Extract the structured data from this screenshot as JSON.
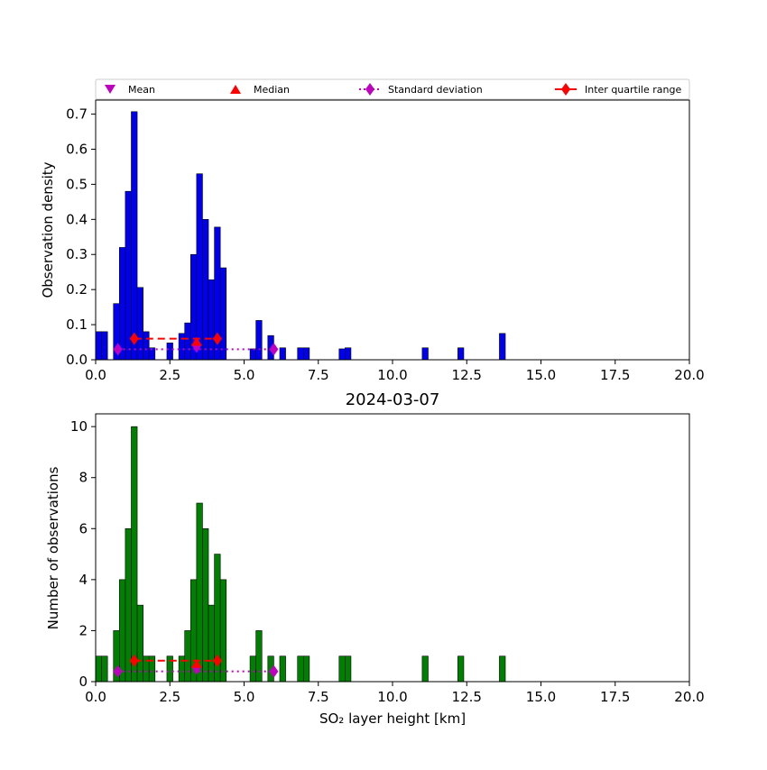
{
  "figure": {
    "title_between": "2024-03-07",
    "xlabel": "SO₂ layer height [km]"
  },
  "legend": {
    "items": [
      {
        "label": "Mean",
        "marker": "triangle-down",
        "color": "#c000c0"
      },
      {
        "label": "Median",
        "marker": "triangle-up",
        "color": "#ff0000"
      },
      {
        "label": "Standard deviation",
        "marker": "diamond",
        "line": "dotted",
        "color": "#c000c0"
      },
      {
        "label": "Inter quartile range",
        "marker": "diamond",
        "line": "solid",
        "color": "#ff0000"
      }
    ]
  },
  "chart_data": [
    {
      "type": "bar",
      "ylabel": "Observation density",
      "bar_color": "#0000ee",
      "xlim": [
        0,
        20
      ],
      "ylim": [
        0,
        0.74
      ],
      "xticks": [
        "0.0",
        "2.5",
        "5.0",
        "7.5",
        "10.0",
        "12.5",
        "15.0",
        "17.5",
        "20.0"
      ],
      "yticks": [
        "0.0",
        "0.1",
        "0.2",
        "0.3",
        "0.4",
        "0.5",
        "0.6",
        "0.7"
      ],
      "bin_width": 0.2,
      "bins": [
        {
          "x": 0.0,
          "y": 0.08
        },
        {
          "x": 0.2,
          "y": 0.08
        },
        {
          "x": 0.6,
          "y": 0.16
        },
        {
          "x": 0.8,
          "y": 0.32
        },
        {
          "x": 1.0,
          "y": 0.48
        },
        {
          "x": 1.2,
          "y": 0.707
        },
        {
          "x": 1.4,
          "y": 0.206
        },
        {
          "x": 1.6,
          "y": 0.08
        },
        {
          "x": 1.8,
          "y": 0.034
        },
        {
          "x": 2.4,
          "y": 0.048
        },
        {
          "x": 2.8,
          "y": 0.075
        },
        {
          "x": 3.0,
          "y": 0.105
        },
        {
          "x": 3.2,
          "y": 0.3
        },
        {
          "x": 3.4,
          "y": 0.53
        },
        {
          "x": 3.6,
          "y": 0.4
        },
        {
          "x": 3.8,
          "y": 0.228
        },
        {
          "x": 4.0,
          "y": 0.378
        },
        {
          "x": 4.2,
          "y": 0.262
        },
        {
          "x": 5.2,
          "y": 0.031
        },
        {
          "x": 5.4,
          "y": 0.112
        },
        {
          "x": 5.8,
          "y": 0.069
        },
        {
          "x": 6.2,
          "y": 0.034
        },
        {
          "x": 6.8,
          "y": 0.034
        },
        {
          "x": 7.0,
          "y": 0.034
        },
        {
          "x": 8.2,
          "y": 0.031
        },
        {
          "x": 8.4,
          "y": 0.034
        },
        {
          "x": 11.0,
          "y": 0.034
        },
        {
          "x": 12.2,
          "y": 0.034
        },
        {
          "x": 13.6,
          "y": 0.075
        }
      ],
      "stats": {
        "mean": 3.4,
        "median": 3.4,
        "std_range": [
          0.75,
          6.0
        ],
        "std_y": 0.03,
        "iqr_range": [
          1.3,
          4.1
        ],
        "iqr_y": 0.06
      }
    },
    {
      "type": "bar",
      "ylabel": "Number of observations",
      "bar_color": "#008000",
      "xlim": [
        0,
        20
      ],
      "ylim": [
        0,
        10.5
      ],
      "xticks": [
        "0.0",
        "2.5",
        "5.0",
        "7.5",
        "10.0",
        "12.5",
        "15.0",
        "17.5",
        "20.0"
      ],
      "yticks": [
        "0",
        "2",
        "4",
        "6",
        "8",
        "10"
      ],
      "bin_width": 0.2,
      "bins": [
        {
          "x": 0.0,
          "y": 1
        },
        {
          "x": 0.2,
          "y": 1
        },
        {
          "x": 0.6,
          "y": 2
        },
        {
          "x": 0.8,
          "y": 4
        },
        {
          "x": 1.0,
          "y": 6
        },
        {
          "x": 1.2,
          "y": 10
        },
        {
          "x": 1.4,
          "y": 3
        },
        {
          "x": 1.6,
          "y": 1
        },
        {
          "x": 1.8,
          "y": 1
        },
        {
          "x": 2.4,
          "y": 1
        },
        {
          "x": 2.8,
          "y": 1
        },
        {
          "x": 3.0,
          "y": 2
        },
        {
          "x": 3.2,
          "y": 4
        },
        {
          "x": 3.4,
          "y": 7
        },
        {
          "x": 3.6,
          "y": 6
        },
        {
          "x": 3.8,
          "y": 3
        },
        {
          "x": 4.0,
          "y": 5
        },
        {
          "x": 4.2,
          "y": 4
        },
        {
          "x": 5.2,
          "y": 1
        },
        {
          "x": 5.4,
          "y": 2
        },
        {
          "x": 5.8,
          "y": 1
        },
        {
          "x": 6.2,
          "y": 1
        },
        {
          "x": 6.8,
          "y": 1
        },
        {
          "x": 7.0,
          "y": 1
        },
        {
          "x": 8.2,
          "y": 1
        },
        {
          "x": 8.4,
          "y": 1
        },
        {
          "x": 11.0,
          "y": 1
        },
        {
          "x": 12.2,
          "y": 1
        },
        {
          "x": 13.6,
          "y": 1
        }
      ],
      "stats": {
        "mean": 3.4,
        "median": 3.4,
        "std_range": [
          0.75,
          6.0
        ],
        "std_y": 0.4,
        "iqr_range": [
          1.3,
          4.1
        ],
        "iqr_y": 0.82
      }
    }
  ]
}
